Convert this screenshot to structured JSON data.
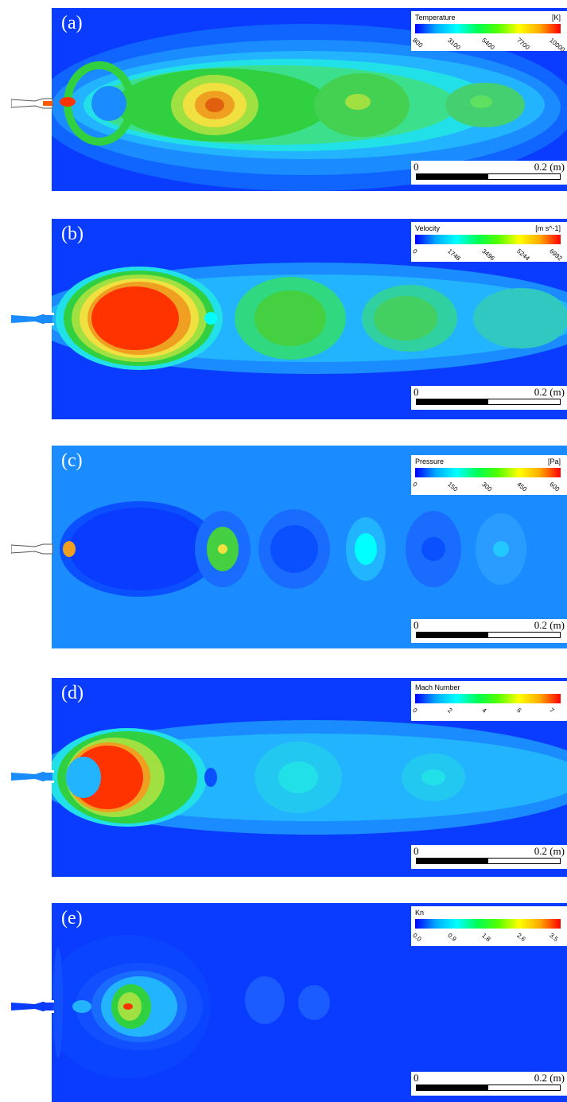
{
  "panels": [
    {
      "label": "(a)",
      "legend": {
        "title": "Temperature",
        "unit": "[K]",
        "ticks": [
          "800",
          "3100",
          "5400",
          "7700",
          "10000"
        ]
      },
      "scale": {
        "zero": "0",
        "max": "0.2 (m)"
      }
    },
    {
      "label": "(b)",
      "legend": {
        "title": "Velocity",
        "unit": "[m s^-1]",
        "ticks": [
          "0",
          "1748",
          "3496",
          "5244",
          "6992"
        ]
      },
      "scale": {
        "zero": "0",
        "max": "0.2 (m)"
      }
    },
    {
      "label": "(c)",
      "legend": {
        "title": "Pressure",
        "unit": "[Pa]",
        "ticks": [
          "0",
          "150",
          "300",
          "450",
          "600"
        ]
      },
      "scale": {
        "zero": "0",
        "max": "0.2 (m)"
      }
    },
    {
      "label": "(d)",
      "legend": {
        "title": "Mach Number",
        "unit": "",
        "ticks": [
          "0",
          "2",
          "4",
          "6",
          "7"
        ]
      },
      "scale": {
        "zero": "0",
        "max": "0.2 (m)"
      }
    },
    {
      "label": "(e)",
      "legend": {
        "title": "Kn",
        "unit": "",
        "ticks": [
          "0.0",
          "0.9",
          "1.8",
          "2.6",
          "3.5"
        ]
      },
      "scale": {
        "zero": "0",
        "max": "0.2 (m)"
      }
    }
  ],
  "colormap": [
    "#0000ff",
    "#00aaff",
    "#00ffff",
    "#00ff55",
    "#55ff00",
    "#ffff00",
    "#ffaa00",
    "#ff0000"
  ]
}
